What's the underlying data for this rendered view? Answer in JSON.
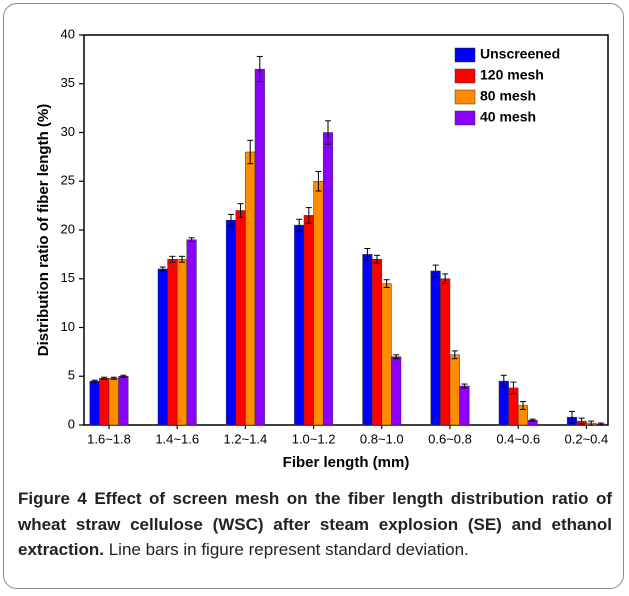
{
  "chart_data": {
    "type": "bar",
    "xlabel": "Fiber length (mm)",
    "ylabel": "Distribution ratio of fiber length (%)",
    "categories": [
      "1.6~1.8",
      "1.4~1.6",
      "1.2~1.4",
      "1.0~1.2",
      "0.8~1.0",
      "0.6~0.8",
      "0.4~0.6",
      "0.2~0.4"
    ],
    "series": [
      {
        "name": "Unscreened",
        "color": "#0000ff",
        "values": [
          4.5,
          16,
          21,
          20.5,
          17.5,
          15.8,
          4.5,
          0.8
        ],
        "errors": [
          0.1,
          0.2,
          0.6,
          0.6,
          0.6,
          0.6,
          0.6,
          0.6
        ]
      },
      {
        "name": "120 mesh",
        "color": "#ff0000",
        "values": [
          4.8,
          17,
          22,
          21.5,
          17,
          15,
          3.8,
          0.4
        ],
        "errors": [
          0.1,
          0.3,
          0.7,
          0.8,
          0.4,
          0.5,
          0.6,
          0.3
        ]
      },
      {
        "name": "80 mesh",
        "color": "#ff8c00",
        "values": [
          4.8,
          17,
          28,
          25,
          14.5,
          7.2,
          2,
          0.2
        ],
        "errors": [
          0.1,
          0.3,
          1.2,
          1,
          0.4,
          0.4,
          0.4,
          0.2
        ]
      },
      {
        "name": "40 mesh",
        "color": "#8b00ff",
        "values": [
          5,
          19,
          36.5,
          30,
          7,
          4,
          0.5,
          0.1
        ],
        "errors": [
          0.1,
          0.2,
          1.3,
          1.2,
          0.2,
          0.2,
          0.1,
          0.1
        ]
      }
    ],
    "ylim": [
      0,
      40
    ],
    "yticks": [
      0,
      5,
      10,
      15,
      20,
      25,
      30,
      35,
      40
    ],
    "legend": "upper right",
    "error_bars": true
  },
  "caption": {
    "label": "Figure 4",
    "title": "Effect of screen mesh on the fiber length distribution ratio of wheat straw cellulose (WSC) after steam explosion (SE) and ethanol extraction.",
    "note": "Line bars in figure represent standard deviation."
  }
}
